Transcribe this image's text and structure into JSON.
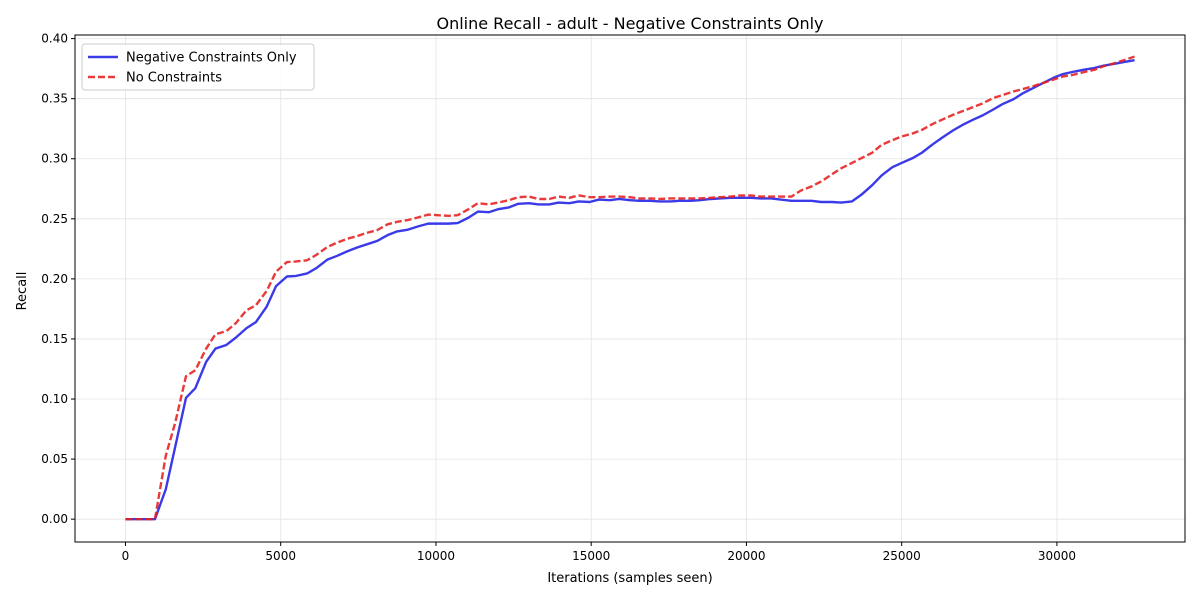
{
  "chart_data": {
    "type": "line",
    "title": "Online Recall - adult - Negative Constraints Only",
    "xlabel": "Iterations (samples seen)",
    "ylabel": "Recall",
    "xlim": [
      -1625,
      34125
    ],
    "ylim": [
      -0.019,
      0.403
    ],
    "xticks": [
      0,
      5000,
      10000,
      15000,
      20000,
      25000,
      30000
    ],
    "yticks": [
      0.0,
      0.05,
      0.1,
      0.15,
      0.2,
      0.25,
      0.3,
      0.35,
      0.4
    ],
    "ytick_labels": [
      "0.00",
      "0.05",
      "0.10",
      "0.15",
      "0.20",
      "0.25",
      "0.30",
      "0.35",
      "0.40"
    ],
    "grid": true,
    "legend_position": "upper-left",
    "series": [
      {
        "name": "Negative Constraints Only",
        "color": "#1f1fe6",
        "style": "solid",
        "x": [
          0,
          300,
          650,
          950,
          1300,
          1600,
          1950,
          2250,
          2600,
          2900,
          3250,
          3550,
          3900,
          4200,
          4550,
          4850,
          5200,
          5500,
          5850,
          6150,
          6500,
          6800,
          7150,
          7450,
          7800,
          8100,
          8450,
          8750,
          9100,
          9400,
          9750,
          10050,
          10400,
          10700,
          11050,
          11350,
          11700,
          12000,
          12350,
          12650,
          13000,
          13300,
          13650,
          13950,
          14300,
          14600,
          14950,
          15250,
          15600,
          15900,
          16250,
          16550,
          16900,
          17200,
          17550,
          17850,
          18200,
          18500,
          18850,
          19150,
          19500,
          19800,
          20150,
          20450,
          20800,
          21100,
          21450,
          21750,
          22100,
          22400,
          22750,
          23050,
          23400,
          23700,
          24050,
          24350,
          24700,
          25000,
          25350,
          25650,
          26000,
          26300,
          26650,
          26950,
          27300,
          27600,
          27950,
          28250,
          28600,
          28900,
          29250,
          29550,
          29900,
          30200,
          30550,
          30850,
          31200,
          31500,
          31850,
          32150,
          32500
        ],
        "y": [
          0.0,
          0.0,
          0.0,
          0.0,
          0.025,
          0.06,
          0.101,
          0.109,
          0.131,
          0.142,
          0.145,
          0.151,
          0.159,
          0.164,
          0.177,
          0.194,
          0.202,
          0.2025,
          0.2045,
          0.209,
          0.216,
          0.219,
          0.223,
          0.226,
          0.229,
          0.2315,
          0.2365,
          0.2395,
          0.241,
          0.2435,
          0.246,
          0.246,
          0.246,
          0.2465,
          0.251,
          0.256,
          0.2555,
          0.258,
          0.2595,
          0.2625,
          0.263,
          0.262,
          0.262,
          0.2635,
          0.263,
          0.2645,
          0.264,
          0.266,
          0.2655,
          0.2665,
          0.2655,
          0.265,
          0.265,
          0.2645,
          0.2645,
          0.265,
          0.265,
          0.2655,
          0.2665,
          0.267,
          0.2675,
          0.2675,
          0.2675,
          0.267,
          0.267,
          0.266,
          0.265,
          0.265,
          0.265,
          0.264,
          0.264,
          0.2635,
          0.2645,
          0.27,
          0.278,
          0.286,
          0.293,
          0.2965,
          0.3005,
          0.305,
          0.312,
          0.3175,
          0.3235,
          0.328,
          0.3325,
          0.336,
          0.341,
          0.3455,
          0.3495,
          0.3545,
          0.359,
          0.363,
          0.3675,
          0.3705,
          0.3725,
          0.374,
          0.3755,
          0.3775,
          0.379,
          0.3805,
          0.382
        ]
      },
      {
        "name": "No Constraints",
        "color": "#e61f1f",
        "style": "dashed",
        "x": [
          0,
          300,
          650,
          950,
          1300,
          1600,
          1950,
          2250,
          2600,
          2900,
          3250,
          3550,
          3900,
          4200,
          4550,
          4850,
          5200,
          5500,
          5850,
          6150,
          6500,
          6800,
          7150,
          7450,
          7800,
          8100,
          8450,
          8750,
          9100,
          9400,
          9750,
          10050,
          10400,
          10700,
          11050,
          11350,
          11700,
          12000,
          12350,
          12650,
          13000,
          13300,
          13650,
          13950,
          14300,
          14600,
          14950,
          15250,
          15600,
          15900,
          16250,
          16550,
          16900,
          17200,
          17550,
          17850,
          18200,
          18500,
          18850,
          19150,
          19500,
          19800,
          20150,
          20450,
          20800,
          21100,
          21450,
          21750,
          22100,
          22400,
          22750,
          23050,
          23400,
          23700,
          24050,
          24350,
          24700,
          25000,
          25350,
          25650,
          26000,
          26300,
          26650,
          26950,
          27300,
          27600,
          27950,
          28250,
          28600,
          28900,
          29250,
          29550,
          29900,
          30200,
          30550,
          30850,
          31200,
          31500,
          31850,
          32150,
          32500
        ],
        "y": [
          0.0,
          0.0,
          0.0,
          0.0,
          0.053,
          0.08,
          0.119,
          0.124,
          0.142,
          0.154,
          0.1565,
          0.163,
          0.174,
          0.178,
          0.19,
          0.206,
          0.214,
          0.2145,
          0.2155,
          0.22,
          0.2265,
          0.23,
          0.2335,
          0.2355,
          0.2385,
          0.2405,
          0.2455,
          0.2475,
          0.249,
          0.251,
          0.2535,
          0.253,
          0.2525,
          0.253,
          0.258,
          0.263,
          0.262,
          0.2635,
          0.2655,
          0.268,
          0.2685,
          0.2665,
          0.2665,
          0.2685,
          0.2675,
          0.2695,
          0.268,
          0.268,
          0.2685,
          0.2685,
          0.268,
          0.267,
          0.267,
          0.2665,
          0.267,
          0.267,
          0.267,
          0.267,
          0.2675,
          0.268,
          0.2685,
          0.2695,
          0.2695,
          0.2685,
          0.2685,
          0.2685,
          0.2685,
          0.2735,
          0.277,
          0.281,
          0.287,
          0.292,
          0.2965,
          0.3005,
          0.305,
          0.3115,
          0.3155,
          0.3185,
          0.321,
          0.324,
          0.329,
          0.3325,
          0.3365,
          0.3395,
          0.343,
          0.346,
          0.3505,
          0.353,
          0.356,
          0.358,
          0.3605,
          0.363,
          0.366,
          0.3685,
          0.37,
          0.372,
          0.374,
          0.377,
          0.3795,
          0.382,
          0.385
        ]
      }
    ]
  }
}
